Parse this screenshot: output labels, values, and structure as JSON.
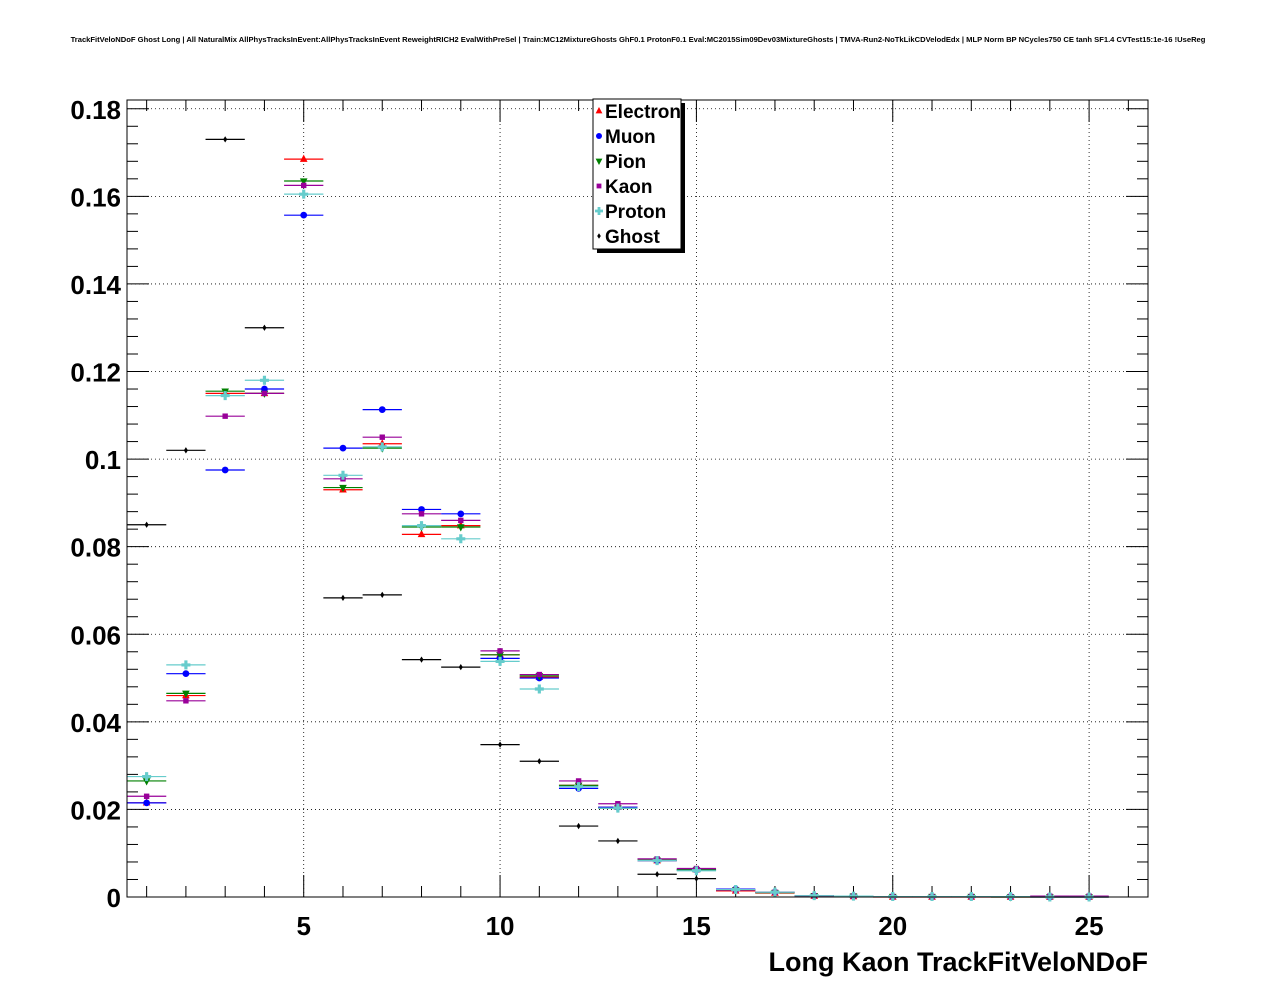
{
  "chart_data": {
    "type": "scatter",
    "title": "TrackFitVeloNDoF Ghost Long | All NaturalMix AllPhysTracksInEvent:AllPhysTracksInEvent ReweightRICH2 EvalWithPreSel | Train:MC12MixtureGhosts GhF0.1 ProtonF0.1 Eval:MC2015Sim09Dev03MixtureGhosts | TMVA-Run2-NoTkLikCDVelodEdx | MLP Norm BP NCycles750 CE tanh SF1.4 CVTest15:1e-16 !UseReg",
    "xlabel": "Long Kaon TrackFitVeloNDoF",
    "ylabel": "",
    "xlim": [
      0.5,
      26.5
    ],
    "ylim": [
      0,
      0.182
    ],
    "grid": true,
    "legend_position": "top-center",
    "x_ticks": [
      5,
      10,
      15,
      20,
      25
    ],
    "x_tick_labels": [
      "5",
      "10",
      "15",
      "20",
      "25"
    ],
    "y_ticks": [
      0,
      0.02,
      0.04,
      0.06,
      0.08,
      0.1,
      0.12,
      0.14,
      0.16,
      0.18
    ],
    "y_tick_labels": [
      "0",
      "0.02",
      "0.04",
      "0.06",
      "0.08",
      "0.1",
      "0.12",
      "0.14",
      "0.16",
      "0.18"
    ],
    "x": [
      1,
      2,
      3,
      4,
      5,
      6,
      7,
      8,
      9,
      10,
      11,
      12,
      13,
      14,
      15,
      16,
      17,
      18,
      19,
      20,
      21,
      22,
      23,
      24,
      25
    ],
    "series": [
      {
        "name": "Electron",
        "color": "#ff0000",
        "marker": "triangle-up",
        "values": [
          0.0215,
          0.046,
          0.115,
          0.115,
          0.1685,
          0.093,
          0.1035,
          0.0828,
          0.0848,
          0.0553,
          0.0502,
          0.0255,
          0.0205,
          0.0083,
          0.0062,
          0.0014,
          0.0009,
          0.0002,
          0.0001,
          0.0,
          0.0,
          0.0,
          0.0,
          0.0,
          0.0
        ]
      },
      {
        "name": "Muon",
        "color": "#0000ff",
        "marker": "circle",
        "values": [
          0.0215,
          0.051,
          0.0975,
          0.116,
          0.1557,
          0.1025,
          0.1113,
          0.0885,
          0.0875,
          0.0545,
          0.05,
          0.0248,
          0.0205,
          0.0083,
          0.0062,
          0.0018,
          0.0011,
          0.0003,
          0.0002,
          0.0001,
          0.0001,
          0.0001,
          0.0001,
          0.0,
          0.0
        ]
      },
      {
        "name": "Pion",
        "color": "#008000",
        "marker": "triangle-down",
        "values": [
          0.0265,
          0.0465,
          0.1155,
          0.115,
          0.1635,
          0.0935,
          0.1025,
          0.0845,
          0.0845,
          0.0553,
          0.0505,
          0.0255,
          0.0203,
          0.0084,
          0.0062,
          0.0016,
          0.001,
          0.0003,
          0.0002,
          0.0001,
          0.0001,
          0.0001,
          0.0,
          0.0,
          0.0
        ]
      },
      {
        "name": "Kaon",
        "color": "#990099",
        "marker": "square",
        "values": [
          0.023,
          0.0448,
          0.1098,
          0.115,
          0.1625,
          0.0955,
          0.105,
          0.0875,
          0.086,
          0.0562,
          0.0508,
          0.0265,
          0.0213,
          0.0087,
          0.0065,
          0.0016,
          0.0011,
          0.0003,
          0.0002,
          0.0001,
          0.0001,
          0.0001,
          0.0001,
          0.0002,
          0.0002
        ]
      },
      {
        "name": "Proton",
        "color": "#66cccc",
        "marker": "plus",
        "values": [
          0.0275,
          0.053,
          0.1145,
          0.118,
          0.1605,
          0.0963,
          0.1028,
          0.0848,
          0.0818,
          0.0538,
          0.0475,
          0.0252,
          0.0203,
          0.0083,
          0.006,
          0.0017,
          0.0011,
          0.0003,
          0.0002,
          0.0001,
          0.0001,
          0.0001,
          0.0001,
          0.0,
          0.0
        ]
      },
      {
        "name": "Ghost",
        "color": "#000000",
        "marker": "diamond",
        "values": [
          0.085,
          0.102,
          0.173,
          0.13,
          null,
          0.0683,
          0.069,
          0.0542,
          0.0525,
          0.0348,
          0.031,
          0.0162,
          0.0128,
          0.0052,
          0.0042,
          null,
          null,
          null,
          null,
          null,
          null,
          null,
          null,
          null,
          null
        ]
      }
    ]
  }
}
